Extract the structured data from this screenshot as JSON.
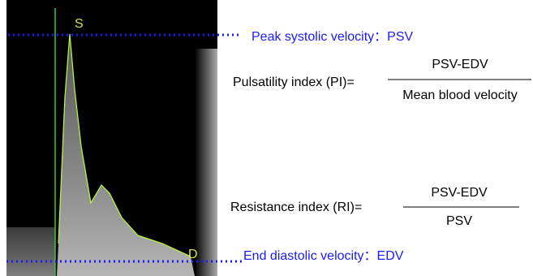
{
  "image": {
    "peak_marker": "S",
    "end_marker": "D"
  },
  "annotations": {
    "psv": "Peak systolic velocity：PSV",
    "edv": "End diastolic velocity：EDV"
  },
  "formulas": [
    {
      "label": "Pulsatility index (PI)=",
      "numerator": "PSV-EDV",
      "denominator": "Mean blood velocity"
    },
    {
      "label": "Resistance index (RI)=",
      "numerator": "PSV-EDV",
      "denominator": "PSV"
    }
  ]
}
